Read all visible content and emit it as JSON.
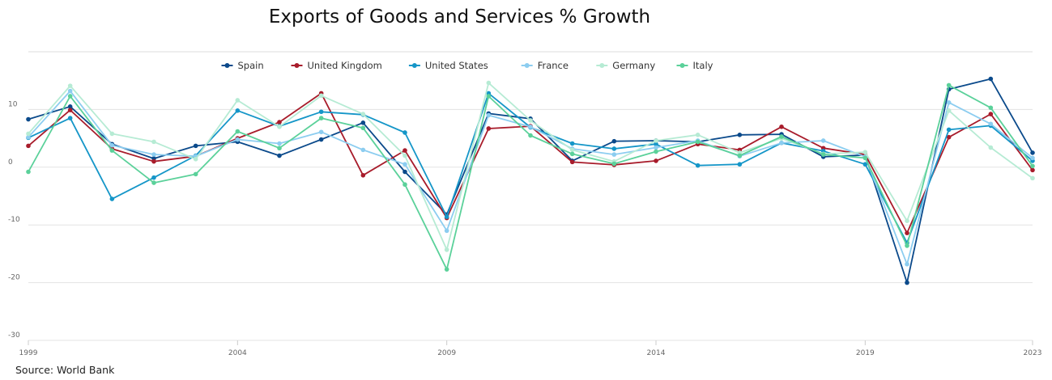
{
  "chart_data": {
    "type": "line",
    "title": "Exports of Goods and Services % Growth",
    "source": "Source: World Bank",
    "xlabel": "",
    "ylabel": "",
    "x": [
      1999,
      2000,
      2001,
      2002,
      2003,
      2004,
      2005,
      2006,
      2007,
      2008,
      2009,
      2010,
      2011,
      2012,
      2013,
      2014,
      2015,
      2016,
      2017,
      2018,
      2019,
      2020,
      2021,
      2022,
      2023
    ],
    "x_ticks": [
      "1999",
      "2004",
      "2009",
      "2014",
      "2019",
      "2023"
    ],
    "y_ticks": [
      "10",
      "0",
      "-10",
      "-20",
      "-30"
    ],
    "ylim": [
      -30,
      20
    ],
    "grid": true,
    "legend_position": "top-center",
    "series": [
      {
        "name": "Spain",
        "color": "#0b4a8b",
        "values": [
          8.3,
          10.5,
          4.0,
          1.5,
          3.7,
          4.4,
          2.0,
          4.8,
          7.7,
          -0.8,
          -8.2,
          9.3,
          8.4,
          1.1,
          4.5,
          4.6,
          4.4,
          5.6,
          5.7,
          1.8,
          2.1,
          -20.0,
          13.5,
          15.3,
          2.5
        ]
      },
      {
        "name": "United Kingdom",
        "color": "#a81c2b",
        "values": [
          3.7,
          9.9,
          3.2,
          1.0,
          1.9,
          5.0,
          7.8,
          12.8,
          -1.4,
          2.9,
          -8.8,
          6.7,
          7.1,
          0.9,
          0.4,
          1.1,
          4.0,
          3.0,
          7.0,
          3.3,
          2.2,
          -11.4,
          5.2,
          9.2,
          -0.5
        ]
      },
      {
        "name": "United States",
        "color": "#1596c8",
        "values": [
          5.1,
          8.5,
          -5.5,
          -1.8,
          2.0,
          9.8,
          7.1,
          9.6,
          9.1,
          6.0,
          -8.6,
          12.8,
          6.9,
          4.1,
          3.2,
          4.0,
          0.3,
          0.5,
          4.2,
          2.8,
          0.5,
          -13.1,
          6.5,
          7.2,
          1.1
        ]
      },
      {
        "name": "France",
        "color": "#8ccdf0",
        "values": [
          5.2,
          13.2,
          3.8,
          2.2,
          1.9,
          4.8,
          4.1,
          6.1,
          3.0,
          0.5,
          -11.0,
          9.0,
          7.0,
          3.2,
          2.2,
          3.4,
          4.6,
          1.9,
          4.2,
          4.6,
          1.8,
          -16.8,
          11.2,
          7.5,
          1.6
        ]
      },
      {
        "name": "Germany",
        "color": "#b6ebd4",
        "values": [
          5.8,
          14.1,
          5.8,
          4.4,
          1.4,
          11.6,
          7.0,
          12.4,
          9.2,
          2.0,
          -14.3,
          14.6,
          8.1,
          3.0,
          1.0,
          4.6,
          5.6,
          2.5,
          5.0,
          2.3,
          2.6,
          -9.3,
          9.8,
          3.4,
          -1.9
        ]
      },
      {
        "name": "Italy",
        "color": "#5bd19a",
        "values": [
          -0.8,
          12.3,
          2.9,
          -2.7,
          -1.2,
          6.2,
          3.3,
          8.5,
          6.8,
          -3.0,
          -17.7,
          12.3,
          5.5,
          2.3,
          0.6,
          2.7,
          4.4,
          2.0,
          5.3,
          2.2,
          1.6,
          -13.6,
          14.2,
          10.3,
          0.2
        ]
      }
    ]
  }
}
